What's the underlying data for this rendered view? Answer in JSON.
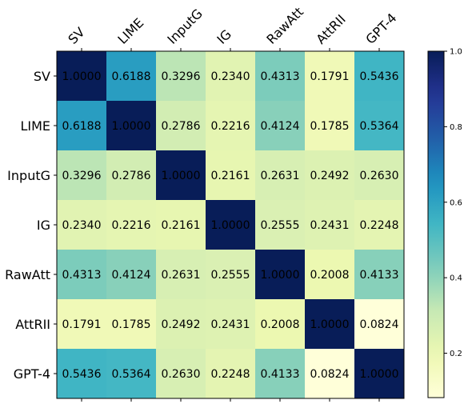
{
  "chart_data": {
    "type": "heatmap",
    "title": "",
    "xlabel": "",
    "ylabel": "",
    "x_categories": [
      "SV",
      "LIME",
      "InputG",
      "IG",
      "RawAtt",
      "AttRII",
      "GPT-4"
    ],
    "y_categories": [
      "SV",
      "LIME",
      "InputG",
      "IG",
      "RawAtt",
      "AttRII",
      "GPT-4"
    ],
    "values": [
      [
        1.0,
        0.6188,
        0.3296,
        0.234,
        0.4313,
        0.1791,
        0.5436
      ],
      [
        0.6188,
        1.0,
        0.2786,
        0.2216,
        0.4124,
        0.1785,
        0.5364
      ],
      [
        0.3296,
        0.2786,
        1.0,
        0.2161,
        0.2631,
        0.2492,
        0.263
      ],
      [
        0.234,
        0.2216,
        0.2161,
        1.0,
        0.2555,
        0.2431,
        0.2248
      ],
      [
        0.4313,
        0.4124,
        0.2631,
        0.2555,
        1.0,
        0.2008,
        0.4133
      ],
      [
        0.1791,
        0.1785,
        0.2492,
        0.2431,
        0.2008,
        1.0,
        0.0824
      ],
      [
        0.5436,
        0.5364,
        0.263,
        0.2248,
        0.4133,
        0.0824,
        1.0
      ]
    ],
    "cell_labels": [
      [
        "1.0000",
        "0.6188",
        "0.3296",
        "0.2340",
        "0.4313",
        "0.1791",
        "0.5436"
      ],
      [
        "0.6188",
        "1.0000",
        "0.2786",
        "0.2216",
        "0.4124",
        "0.1785",
        "0.5364"
      ],
      [
        "0.3296",
        "0.2786",
        "1.0000",
        "0.2161",
        "0.2631",
        "0.2492",
        "0.2630"
      ],
      [
        "0.2340",
        "0.2216",
        "0.2161",
        "1.0000",
        "0.2555",
        "0.2431",
        "0.2248"
      ],
      [
        "0.4313",
        "0.4124",
        "0.2631",
        "0.2555",
        "1.0000",
        "0.2008",
        "0.4133"
      ],
      [
        "0.1791",
        "0.1785",
        "0.2492",
        "0.2431",
        "0.2008",
        "1.0000",
        "0.0824"
      ],
      [
        "0.5436",
        "0.5364",
        "0.2630",
        "0.2248",
        "0.4133",
        "0.0824",
        "1.0000"
      ]
    ],
    "colormap": "YlGnBu",
    "colorbar": {
      "range": [
        0.0824,
        1.0
      ],
      "ticks": [
        0.2,
        0.4,
        0.6,
        0.8,
        1.0
      ],
      "tick_labels": [
        "0.2",
        "0.4",
        "0.6",
        "0.8",
        "1.0"
      ],
      "placement": "right"
    },
    "grid": false,
    "legend": "none"
  }
}
